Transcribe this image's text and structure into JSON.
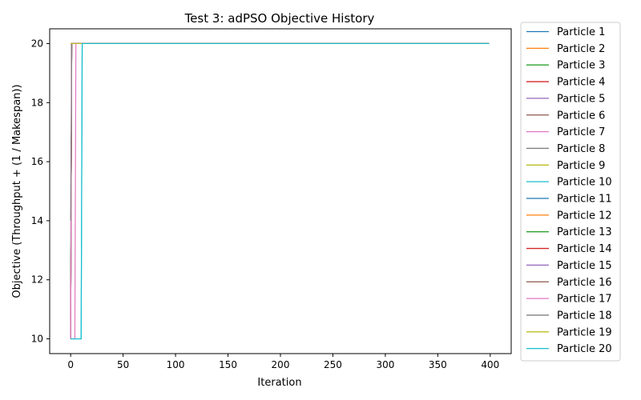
{
  "chart_data": {
    "type": "line",
    "title": "Test 3: adPSO Objective History",
    "xlabel": "Iteration",
    "ylabel": "Objective (Throughput + (1 / Makespan))",
    "xlim": [
      -20,
      420
    ],
    "ylim": [
      9.5,
      20.5
    ],
    "xticks": [
      0,
      50,
      100,
      150,
      200,
      250,
      300,
      350,
      400
    ],
    "yticks": [
      10,
      12,
      14,
      16,
      18,
      20
    ],
    "legend_position": "outside-right",
    "grid": false,
    "series": [
      {
        "name": "Particle 1",
        "color": "#1f77b4",
        "points": [
          [
            0,
            10
          ],
          [
            1,
            20
          ],
          [
            399,
            20
          ]
        ]
      },
      {
        "name": "Particle 2",
        "color": "#ff7f0e",
        "points": [
          [
            0,
            10
          ],
          [
            1,
            20
          ],
          [
            399,
            20
          ]
        ]
      },
      {
        "name": "Particle 3",
        "color": "#2ca02c",
        "points": [
          [
            0,
            10
          ],
          [
            1,
            20
          ],
          [
            399,
            20
          ]
        ]
      },
      {
        "name": "Particle 4",
        "color": "#d62728",
        "points": [
          [
            0,
            10
          ],
          [
            1,
            20
          ],
          [
            399,
            20
          ]
        ]
      },
      {
        "name": "Particle 5",
        "color": "#9467bd",
        "points": [
          [
            0,
            10
          ],
          [
            1,
            20
          ],
          [
            399,
            20
          ]
        ]
      },
      {
        "name": "Particle 6",
        "color": "#8c564b",
        "points": [
          [
            0,
            10
          ],
          [
            1,
            20
          ],
          [
            399,
            20
          ]
        ]
      },
      {
        "name": "Particle 7",
        "color": "#e377c2",
        "points": [
          [
            0,
            10
          ],
          [
            4,
            10
          ],
          [
            5,
            20
          ],
          [
            399,
            20
          ]
        ]
      },
      {
        "name": "Particle 8",
        "color": "#7f7f7f",
        "points": [
          [
            0,
            10
          ],
          [
            1,
            20
          ],
          [
            399,
            20
          ]
        ]
      },
      {
        "name": "Particle 9",
        "color": "#bcbd22",
        "points": [
          [
            0,
            10
          ],
          [
            1,
            20
          ],
          [
            399,
            20
          ]
        ]
      },
      {
        "name": "Particle 10",
        "color": "#17becf",
        "points": [
          [
            0,
            10
          ],
          [
            10,
            10
          ],
          [
            11,
            20
          ],
          [
            399,
            20
          ]
        ]
      },
      {
        "name": "Particle 11",
        "color": "#1f77b4",
        "points": [
          [
            0,
            10
          ],
          [
            1,
            20
          ],
          [
            399,
            20
          ]
        ]
      },
      {
        "name": "Particle 12",
        "color": "#ff7f0e",
        "points": [
          [
            0,
            20
          ],
          [
            399,
            20
          ]
        ]
      },
      {
        "name": "Particle 13",
        "color": "#2ca02c",
        "points": [
          [
            0,
            12
          ],
          [
            1,
            20
          ],
          [
            399,
            20
          ]
        ]
      },
      {
        "name": "Particle 14",
        "color": "#d62728",
        "points": [
          [
            0,
            10
          ],
          [
            1,
            20
          ],
          [
            399,
            20
          ]
        ]
      },
      {
        "name": "Particle 15",
        "color": "#9467bd",
        "points": [
          [
            0,
            10
          ],
          [
            1,
            20
          ],
          [
            399,
            20
          ]
        ]
      },
      {
        "name": "Particle 16",
        "color": "#8c564b",
        "points": [
          [
            0,
            10
          ],
          [
            1,
            20
          ],
          [
            399,
            20
          ]
        ]
      },
      {
        "name": "Particle 17",
        "color": "#e377c2",
        "points": [
          [
            0,
            10
          ],
          [
            1,
            20
          ],
          [
            399,
            20
          ]
        ]
      },
      {
        "name": "Particle 18",
        "color": "#7f7f7f",
        "points": [
          [
            0,
            14
          ],
          [
            1,
            20
          ],
          [
            399,
            20
          ]
        ]
      },
      {
        "name": "Particle 19",
        "color": "#bcbd22",
        "points": [
          [
            0,
            20
          ],
          [
            399,
            20
          ]
        ]
      },
      {
        "name": "Particle 20",
        "color": "#17becf",
        "points": [
          [
            0,
            10
          ],
          [
            10,
            10
          ],
          [
            11,
            20
          ],
          [
            399,
            20
          ]
        ]
      }
    ]
  }
}
